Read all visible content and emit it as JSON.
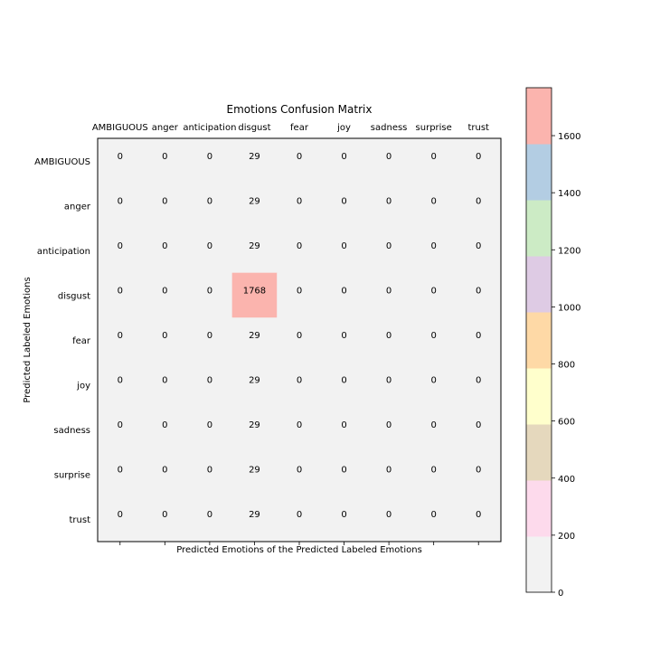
{
  "chart_data": {
    "type": "heatmap",
    "title": "Emotions Confusion Matrix",
    "xlabel": "Predicted Emotions of the Predicted Labeled Emotions",
    "ylabel": "Predicted Labeled Emotions",
    "categories": [
      "AMBIGUOUS",
      "anger",
      "anticipation",
      "disgust",
      "fear",
      "joy",
      "sadness",
      "surprise",
      "trust"
    ],
    "values": [
      [
        0,
        0,
        0,
        29,
        0,
        0,
        0,
        0,
        0
      ],
      [
        0,
        0,
        0,
        29,
        0,
        0,
        0,
        0,
        0
      ],
      [
        0,
        0,
        0,
        29,
        0,
        0,
        0,
        0,
        0
      ],
      [
        0,
        0,
        0,
        1768,
        0,
        0,
        0,
        0,
        0
      ],
      [
        0,
        0,
        0,
        29,
        0,
        0,
        0,
        0,
        0
      ],
      [
        0,
        0,
        0,
        29,
        0,
        0,
        0,
        0,
        0
      ],
      [
        0,
        0,
        0,
        29,
        0,
        0,
        0,
        0,
        0
      ],
      [
        0,
        0,
        0,
        29,
        0,
        0,
        0,
        0,
        0
      ],
      [
        0,
        0,
        0,
        29,
        0,
        0,
        0,
        0,
        0
      ]
    ],
    "colorbar": {
      "range": [
        0,
        1768
      ],
      "ticks": [
        0,
        200,
        400,
        600,
        800,
        1000,
        1200,
        1400,
        1600
      ],
      "colors": [
        "#f2f2f2",
        "#fddaec",
        "#e5d8bd",
        "#ffffcc",
        "#fed9a6",
        "#decbe4",
        "#ccebc5",
        "#b3cde3",
        "#fbb4ae"
      ]
    },
    "grid": false
  }
}
